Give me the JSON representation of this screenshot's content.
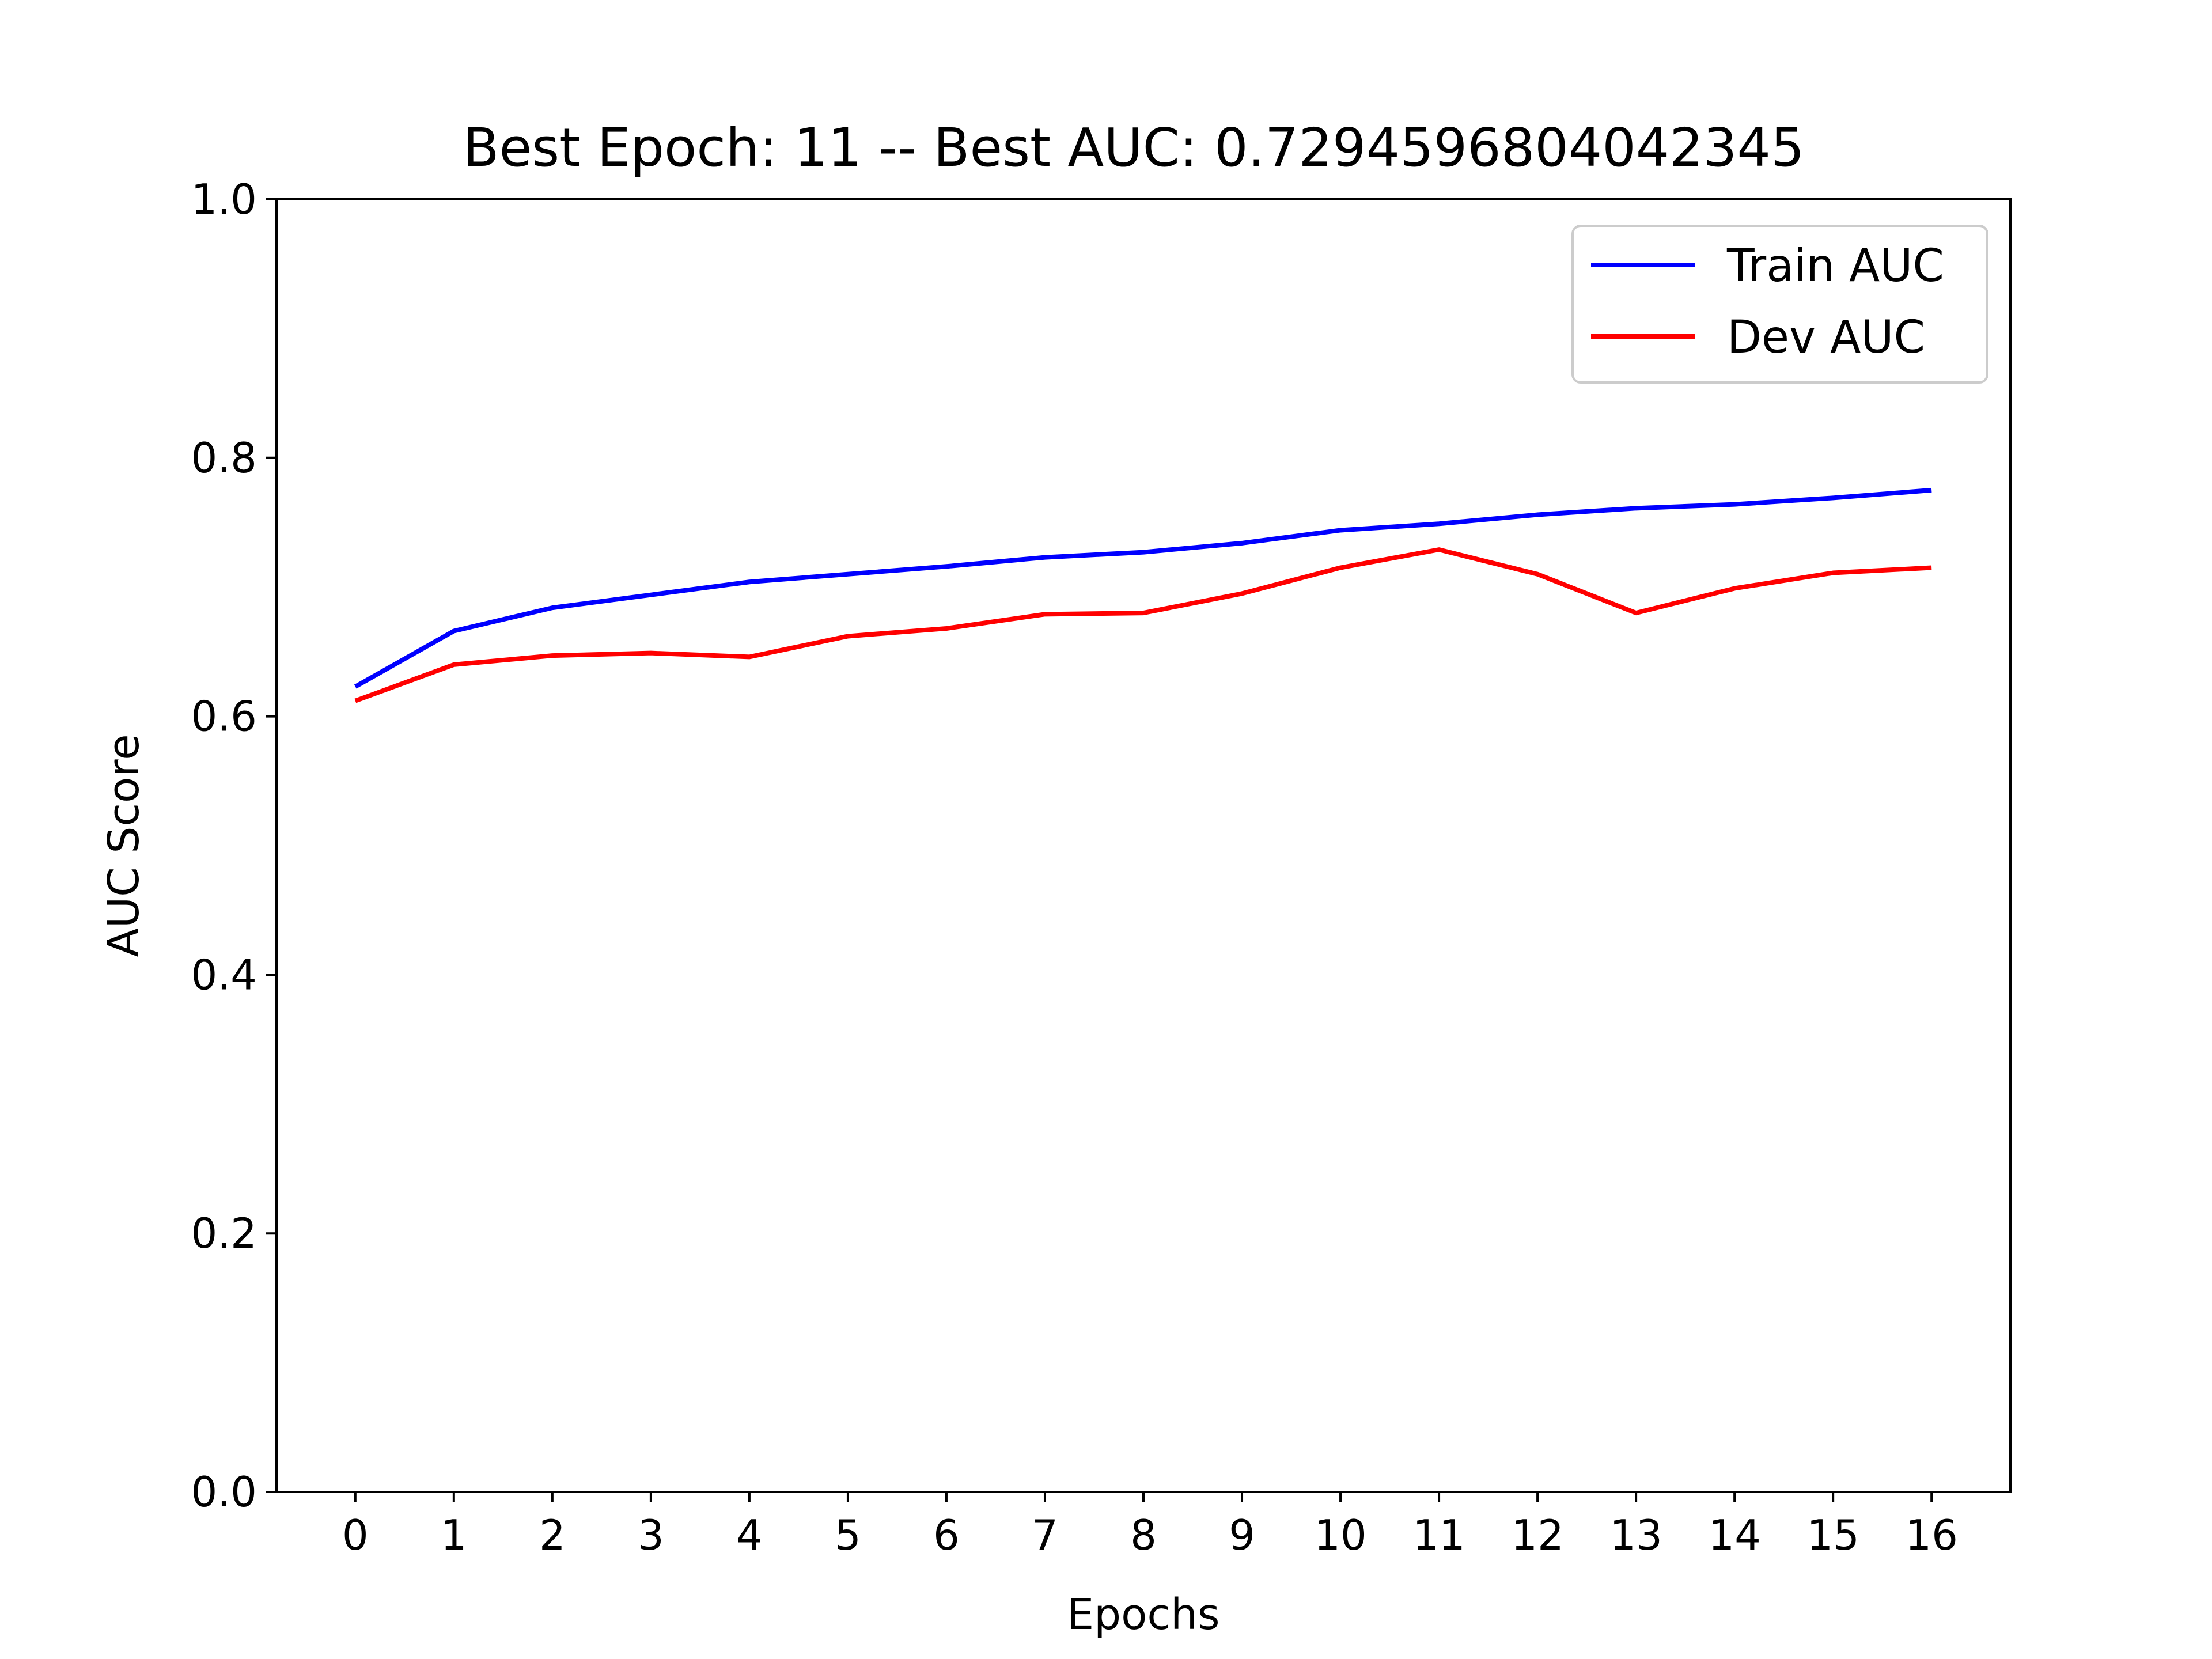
{
  "chart_data": {
    "type": "line",
    "title": "Best Epoch: 11 -- Best AUC: 0.7294596804042345",
    "xlabel": "Epochs",
    "ylabel": "AUC Score",
    "x": [
      0,
      1,
      2,
      3,
      4,
      5,
      6,
      7,
      8,
      9,
      10,
      11,
      12,
      13,
      14,
      15,
      16
    ],
    "xticks": [
      "0",
      "1",
      "2",
      "3",
      "4",
      "5",
      "6",
      "7",
      "8",
      "9",
      "10",
      "11",
      "12",
      "13",
      "14",
      "15",
      "16"
    ],
    "yticks": [
      "0.0",
      "0.2",
      "0.4",
      "0.6",
      "0.8",
      "1.0"
    ],
    "xlim": [
      -0.8,
      16.8
    ],
    "ylim": [
      0.0,
      1.0
    ],
    "grid": false,
    "legend_position": "top-right",
    "series": [
      {
        "name": "Train AUC",
        "color": "#0000ff",
        "values": [
          0.623,
          0.666,
          0.684,
          0.694,
          0.704,
          0.71,
          0.716,
          0.723,
          0.727,
          0.734,
          0.744,
          0.749,
          0.756,
          0.761,
          0.764,
          0.769,
          0.775
        ]
      },
      {
        "name": "Dev AUC",
        "color": "#ff0000",
        "values": [
          0.612,
          0.64,
          0.647,
          0.649,
          0.646,
          0.662,
          0.668,
          0.679,
          0.68,
          0.695,
          0.715,
          0.729,
          0.71,
          0.68,
          0.699,
          0.711,
          0.715
        ]
      }
    ]
  }
}
